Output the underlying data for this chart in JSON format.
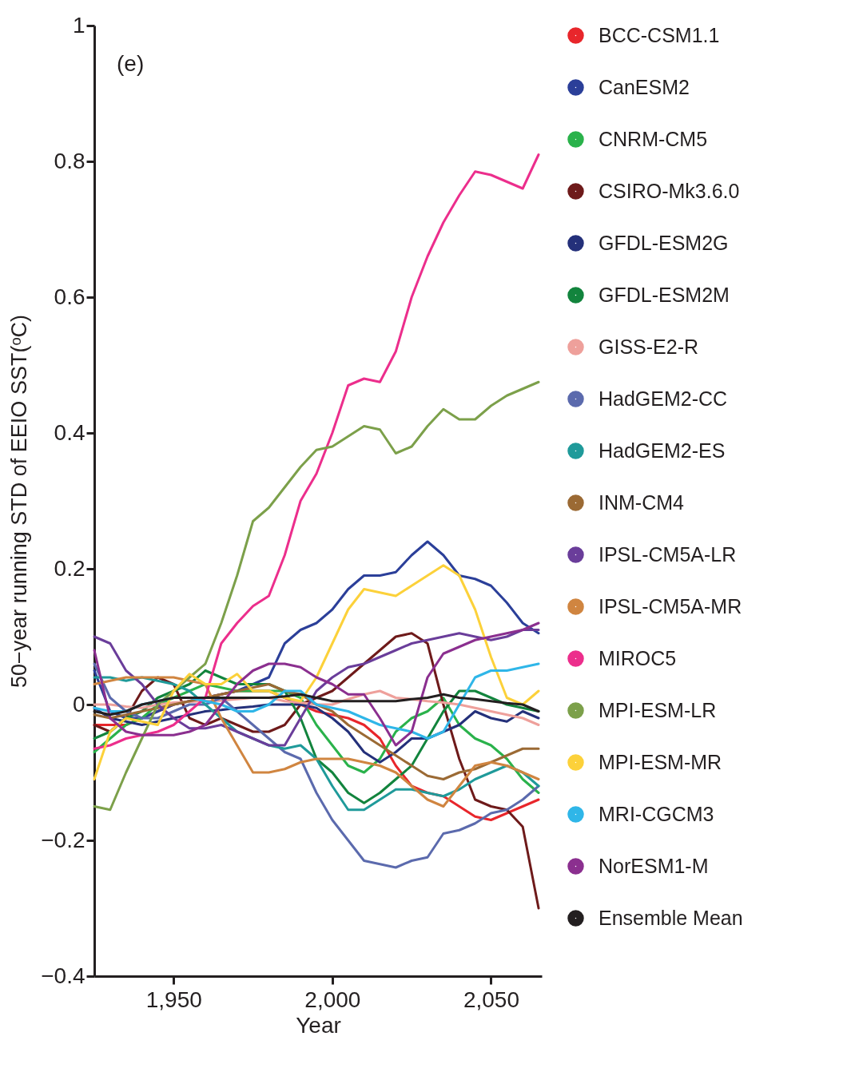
{
  "chart_data": {
    "type": "line",
    "xlabel": "Year",
    "ylabel": "50−year running STD of EEIO SST(ᵒC)",
    "annotations": [
      "(e)"
    ],
    "legend": "right",
    "grid": false,
    "xlim": [
      1925,
      2066
    ],
    "xticks": [
      {
        "value": 1950,
        "label": "1,950"
      },
      {
        "value": 2000,
        "label": "2,000"
      },
      {
        "value": 2050,
        "label": "2,050"
      }
    ],
    "ylim": [
      -0.4,
      1
    ],
    "yticks": [
      {
        "value": -0.4,
        "label": "−0.4"
      },
      {
        "value": -0.2,
        "label": "−0.2"
      },
      0,
      0.2,
      0.4,
      0.6,
      0.8,
      1
    ],
    "x": [
      1925,
      1930,
      1935,
      1940,
      1945,
      1950,
      1955,
      1960,
      1965,
      1970,
      1975,
      1980,
      1985,
      1990,
      1995,
      2000,
      2005,
      2010,
      2015,
      2020,
      2025,
      2030,
      2035,
      2040,
      2045,
      2050,
      2055,
      2060,
      2065
    ],
    "series": [
      {
        "name": "BCC-CSM1.1",
        "color": "#e8262b",
        "values": [
          -0.03,
          -0.03,
          -0.03,
          -0.02,
          -0.01,
          0.0,
          0.005,
          0.01,
          0.015,
          0.02,
          0.02,
          0.02,
          0.01,
          0.0,
          -0.01,
          -0.015,
          -0.02,
          -0.03,
          -0.05,
          -0.09,
          -0.12,
          -0.13,
          -0.135,
          -0.15,
          -0.165,
          -0.17,
          -0.16,
          -0.15,
          -0.14
        ]
      },
      {
        "name": "CanESM2",
        "color": "#2b3f99",
        "values": [
          0.05,
          -0.01,
          -0.02,
          -0.02,
          -0.01,
          0.0,
          0.005,
          0.01,
          0.015,
          0.02,
          0.03,
          0.04,
          0.09,
          0.11,
          0.12,
          0.14,
          0.17,
          0.19,
          0.19,
          0.195,
          0.22,
          0.24,
          0.22,
          0.19,
          0.185,
          0.175,
          0.15,
          0.12,
          0.105
        ]
      },
      {
        "name": "CNRM-CM5",
        "color": "#2ab24b",
        "values": [
          -0.07,
          -0.05,
          -0.03,
          -0.02,
          0.0,
          0.01,
          0.02,
          0.03,
          0.025,
          0.02,
          0.02,
          0.02,
          0.02,
          0.01,
          -0.03,
          -0.06,
          -0.09,
          -0.1,
          -0.08,
          -0.04,
          -0.02,
          -0.01,
          0.01,
          -0.03,
          -0.05,
          -0.06,
          -0.08,
          -0.11,
          -0.13
        ]
      },
      {
        "name": "CSIRO-Mk3.6.0",
        "color": "#6e1a1a",
        "values": [
          -0.03,
          -0.04,
          -0.02,
          0.02,
          0.04,
          0.03,
          -0.02,
          -0.03,
          -0.02,
          -0.03,
          -0.04,
          -0.04,
          -0.03,
          0.0,
          0.01,
          0.02,
          0.04,
          0.06,
          0.08,
          0.1,
          0.105,
          0.09,
          0.0,
          -0.08,
          -0.14,
          -0.15,
          -0.155,
          -0.18,
          -0.3
        ]
      },
      {
        "name": "GFDL-ESM2G",
        "color": "#24307a",
        "values": [
          -0.005,
          -0.02,
          -0.025,
          -0.03,
          -0.025,
          -0.02,
          -0.015,
          -0.01,
          -0.008,
          -0.005,
          -0.003,
          0.0,
          0.0,
          0.0,
          -0.005,
          -0.02,
          -0.04,
          -0.07,
          -0.085,
          -0.07,
          -0.05,
          -0.05,
          -0.04,
          -0.03,
          -0.01,
          -0.02,
          -0.025,
          -0.01,
          -0.02
        ]
      },
      {
        "name": "GFDL-ESM2M",
        "color": "#12843d",
        "values": [
          -0.05,
          -0.04,
          -0.02,
          -0.01,
          0.01,
          0.02,
          0.03,
          0.05,
          0.04,
          0.03,
          0.03,
          0.03,
          0.02,
          -0.02,
          -0.08,
          -0.1,
          -0.13,
          -0.145,
          -0.13,
          -0.11,
          -0.09,
          -0.05,
          -0.01,
          0.02,
          0.02,
          0.01,
          0.0,
          -0.005,
          -0.01
        ]
      },
      {
        "name": "GISS-E2-R",
        "color": "#eea09b",
        "values": [
          0.0,
          0.0,
          -0.003,
          -0.005,
          0.0,
          0.003,
          0.004,
          0.005,
          0.006,
          0.008,
          0.01,
          0.01,
          0.005,
          0.003,
          0.0,
          0.0,
          0.008,
          0.015,
          0.02,
          0.01,
          0.008,
          0.005,
          0.003,
          0.0,
          -0.005,
          -0.01,
          -0.015,
          -0.02,
          -0.03
        ]
      },
      {
        "name": "HadGEM2-CC",
        "color": "#5b6aad",
        "values": [
          0.06,
          0.01,
          -0.01,
          -0.02,
          -0.02,
          -0.01,
          0.0,
          0.0,
          0.01,
          -0.01,
          -0.03,
          -0.05,
          -0.07,
          -0.08,
          -0.13,
          -0.17,
          -0.2,
          -0.23,
          -0.235,
          -0.24,
          -0.23,
          -0.225,
          -0.19,
          -0.185,
          -0.175,
          -0.16,
          -0.155,
          -0.14,
          -0.12
        ]
      },
      {
        "name": "HadGEM2-ES",
        "color": "#1f9a9a",
        "values": [
          0.04,
          0.04,
          0.035,
          0.04,
          0.035,
          0.03,
          0.02,
          0.0,
          -0.02,
          -0.04,
          -0.05,
          -0.06,
          -0.065,
          -0.06,
          -0.08,
          -0.12,
          -0.155,
          -0.155,
          -0.14,
          -0.125,
          -0.125,
          -0.13,
          -0.135,
          -0.125,
          -0.11,
          -0.1,
          -0.09,
          -0.1,
          -0.12
        ]
      },
      {
        "name": "INM-CM4",
        "color": "#9b6a34",
        "values": [
          -0.015,
          -0.02,
          -0.015,
          -0.01,
          -0.005,
          0.0,
          0.005,
          0.01,
          0.015,
          0.02,
          0.025,
          0.03,
          0.02,
          0.015,
          0.0,
          -0.01,
          -0.03,
          -0.045,
          -0.06,
          -0.075,
          -0.09,
          -0.105,
          -0.11,
          -0.1,
          -0.095,
          -0.085,
          -0.075,
          -0.065,
          -0.065
        ]
      },
      {
        "name": "IPSL-CM5A-LR",
        "color": "#6a3d9a",
        "values": [
          0.1,
          0.09,
          0.05,
          0.03,
          0.0,
          -0.02,
          -0.035,
          -0.035,
          -0.03,
          -0.04,
          -0.05,
          -0.06,
          -0.06,
          -0.02,
          0.02,
          0.04,
          0.055,
          0.06,
          0.07,
          0.08,
          0.09,
          0.095,
          0.1,
          0.105,
          0.1,
          0.095,
          0.1,
          0.11,
          0.11
        ]
      },
      {
        "name": "IPSL-CM5A-MR",
        "color": "#d08540",
        "values": [
          0.03,
          0.035,
          0.04,
          0.04,
          0.04,
          0.04,
          0.035,
          0.03,
          -0.02,
          -0.06,
          -0.1,
          -0.1,
          -0.095,
          -0.085,
          -0.08,
          -0.08,
          -0.08,
          -0.085,
          -0.09,
          -0.1,
          -0.12,
          -0.14,
          -0.15,
          -0.12,
          -0.09,
          -0.085,
          -0.09,
          -0.1,
          -0.11
        ]
      },
      {
        "name": "MIROC5",
        "color": "#ec2e8c",
        "values": [
          -0.065,
          -0.06,
          -0.05,
          -0.045,
          -0.04,
          -0.03,
          -0.01,
          0.01,
          0.09,
          0.12,
          0.145,
          0.16,
          0.22,
          0.3,
          0.34,
          0.4,
          0.47,
          0.48,
          0.475,
          0.52,
          0.6,
          0.66,
          0.71,
          0.75,
          0.785,
          0.78,
          0.77,
          0.76,
          0.81
        ]
      },
      {
        "name": "MPI-ESM-LR",
        "color": "#7ca04a",
        "values": [
          -0.15,
          -0.155,
          -0.1,
          -0.05,
          0.0,
          0.02,
          0.04,
          0.06,
          0.12,
          0.19,
          0.27,
          0.29,
          0.32,
          0.35,
          0.375,
          0.38,
          0.395,
          0.41,
          0.405,
          0.37,
          0.38,
          0.41,
          0.435,
          0.42,
          0.42,
          0.44,
          0.455,
          0.465,
          0.475
        ]
      },
      {
        "name": "MPI-ESM-MR",
        "color": "#fcd13a",
        "values": [
          -0.11,
          -0.04,
          -0.02,
          -0.025,
          -0.03,
          0.02,
          0.045,
          0.03,
          0.03,
          0.045,
          0.02,
          0.02,
          0.01,
          0.005,
          0.04,
          0.09,
          0.14,
          0.17,
          0.165,
          0.16,
          0.175,
          0.19,
          0.205,
          0.19,
          0.14,
          0.07,
          0.01,
          0.0,
          0.02
        ]
      },
      {
        "name": "MRI-CGCM3",
        "color": "#2fb6e8",
        "values": [
          -0.005,
          -0.01,
          -0.01,
          0.0,
          0.005,
          0.01,
          0.01,
          0.005,
          0.0,
          -0.01,
          -0.01,
          0.0,
          0.02,
          0.02,
          0.0,
          -0.005,
          -0.01,
          -0.02,
          -0.03,
          -0.035,
          -0.04,
          -0.05,
          -0.04,
          0.0,
          0.04,
          0.05,
          0.05,
          0.055,
          0.06
        ]
      },
      {
        "name": "NorESM1-M",
        "color": "#8b2f8f",
        "values": [
          0.08,
          -0.02,
          -0.04,
          -0.045,
          -0.045,
          -0.045,
          -0.04,
          -0.03,
          0.0,
          0.03,
          0.05,
          0.06,
          0.06,
          0.055,
          0.04,
          0.03,
          0.015,
          0.015,
          -0.02,
          -0.06,
          -0.04,
          0.04,
          0.075,
          0.085,
          0.095,
          0.1,
          0.105,
          0.11,
          0.12
        ]
      },
      {
        "name": "Ensemble Mean",
        "color": "#231f20",
        "values": [
          -0.01,
          -0.015,
          -0.01,
          0.0,
          0.005,
          0.01,
          0.01,
          0.01,
          0.01,
          0.01,
          0.01,
          0.01,
          0.012,
          0.015,
          0.01,
          0.005,
          0.005,
          0.005,
          0.005,
          0.005,
          0.008,
          0.01,
          0.015,
          0.01,
          0.008,
          0.005,
          0.002,
          0.0,
          -0.01
        ]
      }
    ]
  }
}
